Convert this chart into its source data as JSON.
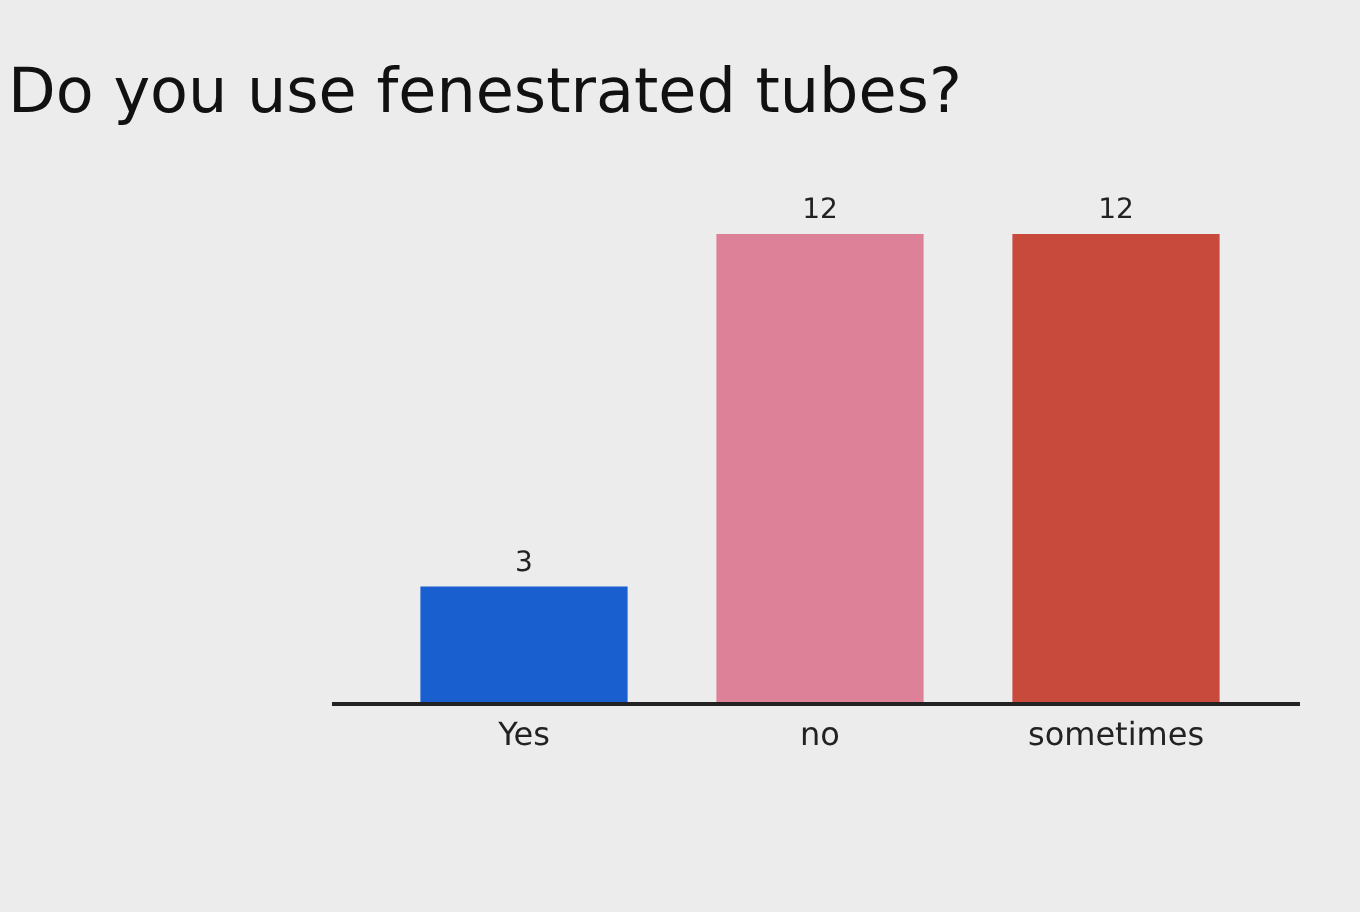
{
  "chart_data": {
    "type": "bar",
    "title": "Do you use fenestrated tubes?",
    "categories": [
      "Yes",
      "no",
      "sometimes"
    ],
    "values": [
      3,
      12,
      12
    ],
    "colors": [
      "#1a5fd0",
      "#dc8198",
      "#c84a3d"
    ],
    "data_labels": true
  }
}
